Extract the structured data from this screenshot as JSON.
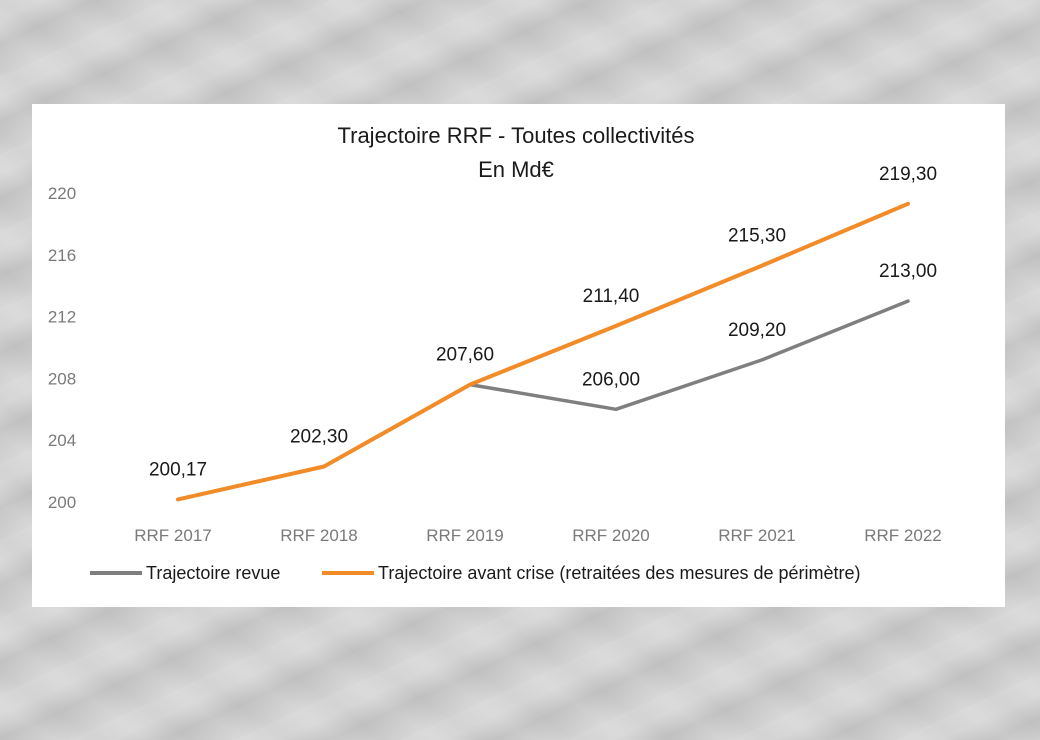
{
  "chart_data": {
    "type": "line",
    "title": "Trajectoire RRF - Toutes collectivités",
    "subtitle": "En Md€",
    "xlabel": "",
    "ylabel": "",
    "categories": [
      "RRF 2017",
      "RRF 2018",
      "RRF 2019",
      "RRF 2020",
      "RRF 2021",
      "RRF 2022"
    ],
    "ylim": [
      200,
      220
    ],
    "yticks": [
      "200",
      "204",
      "208",
      "212",
      "216",
      "220"
    ],
    "grid": false,
    "legend_position": "bottom",
    "series": [
      {
        "name": "Trajectoire revue",
        "color": "#7f7f7f",
        "values": [
          200.17,
          202.3,
          207.6,
          206.0,
          209.2,
          213.0
        ],
        "labels": [
          "",
          "",
          "",
          "206,00",
          "209,20",
          "213,00"
        ]
      },
      {
        "name": "Trajectoire avant crise (retraitées des mesures de périmètre)",
        "color": "#f28c28",
        "values": [
          200.17,
          202.3,
          207.6,
          211.4,
          215.3,
          219.3
        ],
        "labels": [
          "200,17",
          "202,30",
          "207,60",
          "211,40",
          "215,30",
          "219,30"
        ]
      }
    ]
  }
}
